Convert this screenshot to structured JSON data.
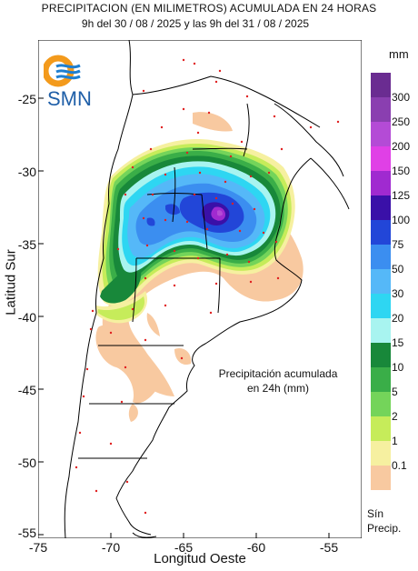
{
  "title": {
    "line1": "PRECIPITACION (EN MILIMETROS) ACUMULADA EN 24 HORAS",
    "line2": "9h del 30 / 08 / 2025  y las 9h del 31 / 08 / 2025"
  },
  "axes": {
    "ylabel": "Latitud Sur",
    "xlabel": "Longitud Oeste",
    "yticks": [
      "-25",
      "-30",
      "-35",
      "-40",
      "-45",
      "-50",
      "-55"
    ],
    "xticks": [
      "-75",
      "-70",
      "-65",
      "-60",
      "-55"
    ],
    "xlim": [
      -75,
      -53
    ],
    "ylim": [
      -55.5,
      -21
    ]
  },
  "logo": {
    "text": "SMN"
  },
  "annotation": {
    "line1": "Precipitación acumulada",
    "line2": "en 24h (mm)"
  },
  "legend": {
    "unit": "mm",
    "no_rain": {
      "line1": "Sín",
      "line2": "Precip."
    },
    "classes": [
      {
        "label": "300",
        "color": "#6a2c91"
      },
      {
        "label": "250",
        "color": "#8a3fb0"
      },
      {
        "label": "200",
        "color": "#b44bd6"
      },
      {
        "label": "150",
        "color": "#e040e6"
      },
      {
        "label": "125",
        "color": "#a02ad0"
      },
      {
        "label": "100",
        "color": "#3a10a8"
      },
      {
        "label": "75",
        "color": "#2246d8"
      },
      {
        "label": "50",
        "color": "#3b8ef0"
      },
      {
        "label": "30",
        "color": "#55b8f8"
      },
      {
        "label": "20",
        "color": "#2ed6f2"
      },
      {
        "label": "15",
        "color": "#a8f4f0"
      },
      {
        "label": "10",
        "color": "#18883a"
      },
      {
        "label": "5",
        "color": "#3aae48"
      },
      {
        "label": "2",
        "color": "#74d45a"
      },
      {
        "label": "1",
        "color": "#c6ec5a"
      },
      {
        "label": "0.1",
        "color": "#f6f0a0"
      },
      {
        "label": "",
        "color": "#f8c9a0"
      }
    ]
  }
}
